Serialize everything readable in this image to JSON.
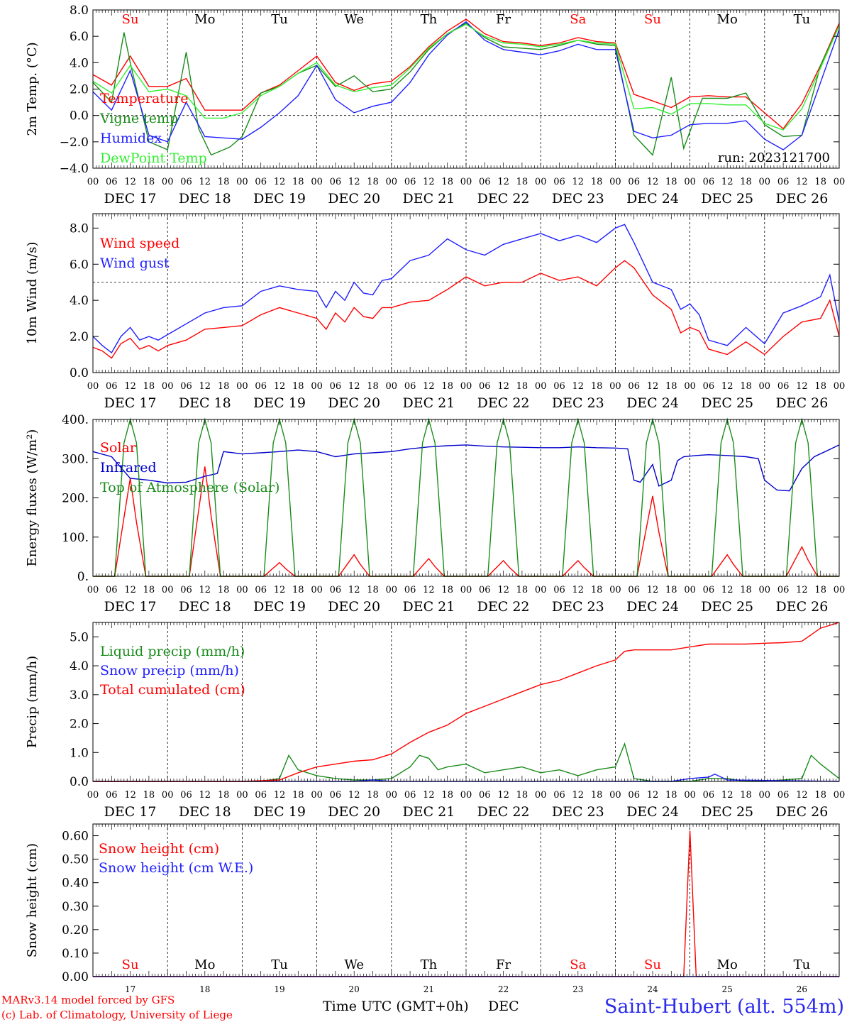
{
  "footer": {
    "model_line": "MARv3.14 model forced by GFS",
    "credit_line": "(c) Lab. of Climatology, University of Liege",
    "xlabel": "Time UTC (GMT+0h)",
    "month": "DEC",
    "station": "Saint-Hubert (alt. 554m)"
  },
  "run_label": "run: 2023121700",
  "colors": {
    "red": "#ff0000",
    "blue": "#1f1fff",
    "green": "#1a8c1a",
    "lightgreen": "#33ee33",
    "darkblue": "#0000cc"
  },
  "days": {
    "weekday": [
      "Su",
      "Mo",
      "Tu",
      "We",
      "Th",
      "Fr",
      "Sa",
      "Su",
      "Mo",
      "Tu"
    ],
    "weekday_color": [
      "red",
      "black",
      "black",
      "black",
      "black",
      "black",
      "red",
      "red",
      "black",
      "black"
    ],
    "labels": [
      "DEC 17",
      "DEC 18",
      "DEC 19",
      "DEC 20",
      "DEC 21",
      "DEC 22",
      "DEC 23",
      "DEC 24",
      "DEC 25",
      "DEC 26"
    ],
    "numbers": [
      "17",
      "18",
      "19",
      "20",
      "21",
      "22",
      "23",
      "24",
      "25",
      "26"
    ],
    "hours": [
      "00",
      "06",
      "12",
      "18"
    ]
  },
  "chart_data": [
    {
      "type": "line",
      "ylabel": "2m Temp. (°C)",
      "ylim": [
        -4,
        8
      ],
      "yticks": [
        "8.0",
        "6.0",
        "4.0",
        "2.0",
        "0.0",
        "−2.0",
        "−4.0"
      ],
      "dashed_y": 0,
      "series": [
        {
          "name": "Temperature",
          "color": "red",
          "x": [
            0,
            6,
            12,
            18,
            24,
            30,
            36,
            42,
            48,
            54,
            60,
            66,
            72,
            78,
            84,
            90,
            96,
            102,
            108,
            114,
            120,
            126,
            132,
            138,
            144,
            150,
            156,
            162,
            168,
            174,
            180,
            186,
            192,
            198,
            204,
            210,
            216,
            222,
            228,
            234,
            240
          ],
          "y": [
            3.1,
            2.3,
            4.5,
            2.2,
            2.2,
            2.8,
            0.4,
            0.4,
            0.4,
            1.7,
            2.3,
            3.4,
            4.5,
            2.5,
            1.9,
            2.4,
            2.6,
            3.7,
            5.2,
            6.4,
            7.3,
            6.2,
            5.6,
            5.5,
            5.3,
            5.5,
            5.9,
            5.6,
            5.5,
            1.6,
            1.1,
            0.6,
            1.4,
            1.5,
            1.4,
            1.4,
            0.2,
            -1.0,
            0.9,
            3.8,
            7.0
          ]
        },
        {
          "name": "Vigne temp",
          "color": "green",
          "x": [
            0,
            6,
            10,
            12,
            18,
            24,
            30,
            34,
            38,
            44,
            48,
            54,
            60,
            66,
            72,
            78,
            84,
            90,
            96,
            102,
            108,
            114,
            120,
            126,
            132,
            138,
            144,
            150,
            156,
            162,
            168,
            174,
            180,
            186,
            190,
            196,
            204,
            210,
            216,
            222,
            228,
            234,
            240
          ],
          "y": [
            2.5,
            1.0,
            6.3,
            4.0,
            -2.0,
            -2.6,
            4.8,
            -1.0,
            -3.0,
            -2.4,
            -1.6,
            1.7,
            2.2,
            3.2,
            3.8,
            2.2,
            3.0,
            1.8,
            2.0,
            3.3,
            5.0,
            6.2,
            7.0,
            5.9,
            5.2,
            5.1,
            5.0,
            5.3,
            5.7,
            5.4,
            5.3,
            -1.5,
            -3.0,
            2.9,
            -2.5,
            1.3,
            1.3,
            1.7,
            -0.7,
            -1.6,
            -1.5,
            3.8,
            6.8
          ]
        },
        {
          "name": "Humidex",
          "color": "blue",
          "x": [
            0,
            6,
            12,
            18,
            24,
            30,
            36,
            42,
            48,
            54,
            60,
            66,
            72,
            78,
            84,
            90,
            96,
            102,
            108,
            114,
            120,
            126,
            132,
            138,
            144,
            150,
            156,
            162,
            168,
            174,
            180,
            186,
            192,
            198,
            204,
            210,
            216,
            222,
            228,
            234,
            240
          ],
          "y": [
            1.8,
            0.4,
            3.4,
            -1.5,
            -2.0,
            1.0,
            -1.6,
            -1.7,
            -1.8,
            -0.9,
            0.2,
            1.5,
            3.8,
            1.2,
            0.2,
            0.7,
            1.0,
            2.5,
            4.6,
            6.1,
            7.1,
            5.7,
            5.0,
            4.8,
            4.6,
            4.9,
            5.4,
            5.0,
            5.0,
            -1.2,
            -1.7,
            -1.5,
            -0.7,
            -0.6,
            -0.6,
            -0.4,
            -1.8,
            -2.6,
            -1.5,
            2.5,
            6.5
          ]
        },
        {
          "name": "DewPoint Temp",
          "color": "lightgreen",
          "x": [
            0,
            6,
            12,
            18,
            24,
            30,
            36,
            42,
            48,
            54,
            60,
            66,
            72,
            78,
            84,
            90,
            96,
            102,
            108,
            114,
            120,
            126,
            132,
            138,
            144,
            150,
            156,
            162,
            168,
            174,
            180,
            186,
            192,
            198,
            204,
            210,
            216,
            222,
            228,
            234,
            240
          ],
          "y": [
            2.6,
            1.7,
            3.8,
            1.8,
            2.0,
            1.5,
            -0.2,
            -0.2,
            0.2,
            1.5,
            2.2,
            3.2,
            4.0,
            2.3,
            1.8,
            2.1,
            2.3,
            3.6,
            5.1,
            6.2,
            6.9,
            6.0,
            5.5,
            5.4,
            5.2,
            5.4,
            5.7,
            5.5,
            5.4,
            0.5,
            0.6,
            0.1,
            0.9,
            0.9,
            0.8,
            0.8,
            -0.6,
            -1.1,
            0.5,
            3.6,
            6.8
          ]
        }
      ]
    },
    {
      "type": "line",
      "ylabel": "10m Wind (m/s)",
      "ylim": [
        0,
        8.8
      ],
      "yticks": [
        "8.0",
        "6.0",
        "4.0",
        "2.0",
        "0.0"
      ],
      "dashed_y": 5,
      "series": [
        {
          "name": "Wind speed",
          "color": "red",
          "x": [
            0,
            3,
            6,
            9,
            12,
            15,
            18,
            21,
            24,
            30,
            36,
            42,
            48,
            54,
            60,
            66,
            72,
            75,
            78,
            81,
            84,
            87,
            90,
            93,
            96,
            102,
            108,
            114,
            120,
            126,
            132,
            138,
            144,
            150,
            156,
            162,
            168,
            171,
            174,
            180,
            186,
            189,
            192,
            195,
            198,
            204,
            210,
            216,
            222,
            228,
            234,
            237,
            240
          ],
          "y": [
            1.4,
            1.2,
            0.8,
            1.6,
            1.9,
            1.3,
            1.5,
            1.2,
            1.5,
            1.8,
            2.4,
            2.5,
            2.6,
            3.2,
            3.6,
            3.3,
            3.0,
            2.4,
            3.3,
            2.8,
            3.6,
            3.1,
            3.0,
            3.6,
            3.6,
            3.9,
            4.0,
            4.6,
            5.3,
            4.8,
            5.0,
            5.0,
            5.5,
            5.1,
            5.3,
            4.8,
            5.8,
            6.2,
            5.8,
            4.3,
            3.5,
            2.2,
            2.5,
            2.3,
            1.3,
            1.0,
            1.7,
            1.0,
            2.0,
            2.8,
            3.0,
            4.0,
            2.0
          ]
        },
        {
          "name": "Wind gust",
          "color": "blue",
          "x": [
            0,
            3,
            6,
            9,
            12,
            15,
            18,
            21,
            24,
            30,
            36,
            42,
            48,
            54,
            60,
            66,
            72,
            75,
            78,
            81,
            84,
            87,
            90,
            93,
            96,
            102,
            108,
            114,
            120,
            126,
            132,
            138,
            144,
            150,
            156,
            162,
            168,
            171,
            174,
            180,
            186,
            189,
            192,
            195,
            198,
            204,
            210,
            216,
            222,
            228,
            234,
            237,
            240
          ],
          "y": [
            2.0,
            1.5,
            1.1,
            2.0,
            2.5,
            1.8,
            2.0,
            1.8,
            2.1,
            2.7,
            3.3,
            3.6,
            3.7,
            4.5,
            4.8,
            4.6,
            4.5,
            3.6,
            4.5,
            4.0,
            5.0,
            4.4,
            4.3,
            5.1,
            5.2,
            6.2,
            6.5,
            7.4,
            6.8,
            6.5,
            7.1,
            7.4,
            7.7,
            7.3,
            7.6,
            7.2,
            8.0,
            8.2,
            7.2,
            5.0,
            4.6,
            3.5,
            3.8,
            3.2,
            1.8,
            1.5,
            2.5,
            1.6,
            3.3,
            3.7,
            4.2,
            5.4,
            2.8
          ]
        }
      ]
    },
    {
      "type": "line",
      "ylabel": "Energy fluxes (W/m²)",
      "ylim": [
        0,
        400
      ],
      "yticks": [
        "400.",
        "300.",
        "200.",
        "100.",
        "0."
      ],
      "series": [
        {
          "name": "Solar",
          "color": "red",
          "peaks": [
            250,
            280,
            35,
            55,
            45,
            40,
            40,
            205,
            55,
            75
          ]
        },
        {
          "name": "Infrared",
          "color": "darkblue",
          "x": [
            0,
            6,
            12,
            18,
            24,
            30,
            36,
            40,
            42,
            48,
            54,
            60,
            66,
            72,
            78,
            84,
            90,
            96,
            102,
            108,
            114,
            120,
            126,
            132,
            138,
            144,
            150,
            156,
            162,
            168,
            172,
            174,
            176,
            180,
            182,
            186,
            188,
            190,
            194,
            198,
            204,
            210,
            214,
            216,
            220,
            224,
            228,
            232,
            236,
            240
          ],
          "y": [
            318,
            305,
            250,
            245,
            238,
            240,
            255,
            262,
            318,
            312,
            315,
            318,
            322,
            318,
            305,
            312,
            315,
            318,
            325,
            330,
            333,
            335,
            332,
            330,
            329,
            328,
            328,
            330,
            328,
            327,
            325,
            245,
            240,
            285,
            230,
            245,
            295,
            305,
            308,
            310,
            308,
            305,
            300,
            245,
            220,
            218,
            275,
            305,
            320,
            335
          ]
        },
        {
          "name": "Top of Atmosphere (Solar)",
          "color": "green",
          "peak": 400
        }
      ]
    },
    {
      "type": "line",
      "ylabel": "Precip (mm/h)",
      "ylim": [
        0,
        5.5
      ],
      "yticks": [
        "5.0",
        "4.0",
        "3.0",
        "2.0",
        "1.0",
        "0.0"
      ],
      "series": [
        {
          "name": "Liquid precip (mm/h)",
          "color": "green",
          "x": [
            0,
            48,
            54,
            60,
            63,
            66,
            69,
            72,
            78,
            84,
            90,
            96,
            102,
            105,
            108,
            111,
            114,
            120,
            126,
            132,
            138,
            144,
            150,
            156,
            162,
            168,
            171,
            174,
            180,
            192,
            198,
            204,
            210,
            216,
            222,
            228,
            231,
            234,
            240
          ],
          "y": [
            0,
            0,
            0,
            0.1,
            0.9,
            0.4,
            0.3,
            0.2,
            0.1,
            0.05,
            0.05,
            0.1,
            0.5,
            0.9,
            0.8,
            0.4,
            0.5,
            0.6,
            0.3,
            0.4,
            0.5,
            0.3,
            0.4,
            0.2,
            0.4,
            0.5,
            1.3,
            0.1,
            0,
            0,
            0.1,
            0.1,
            0,
            0,
            0.05,
            0.1,
            0.9,
            0.6,
            0.1
          ]
        },
        {
          "name": "Snow precip (mm/h)",
          "color": "blue",
          "x": [
            0,
            84,
            90,
            96,
            186,
            192,
            198,
            200,
            204,
            240
          ],
          "y": [
            0,
            0,
            0.05,
            0,
            0,
            0.1,
            0.15,
            0.25,
            0.05,
            0
          ]
        },
        {
          "name": "Total cumulated (cm)",
          "color": "red",
          "x": [
            0,
            48,
            60,
            66,
            72,
            78,
            84,
            90,
            96,
            102,
            108,
            114,
            120,
            126,
            132,
            138,
            144,
            150,
            156,
            162,
            168,
            171,
            174,
            180,
            186,
            192,
            198,
            204,
            210,
            216,
            222,
            228,
            234,
            240
          ],
          "y": [
            0,
            0,
            0.05,
            0.3,
            0.5,
            0.6,
            0.7,
            0.75,
            0.95,
            1.35,
            1.7,
            1.95,
            2.35,
            2.6,
            2.85,
            3.1,
            3.35,
            3.5,
            3.75,
            4.0,
            4.2,
            4.5,
            4.55,
            4.55,
            4.55,
            4.65,
            4.75,
            4.75,
            4.75,
            4.78,
            4.8,
            4.85,
            5.3,
            5.5
          ]
        }
      ]
    },
    {
      "type": "line",
      "ylabel": "Snow height (cm)",
      "ylim": [
        0,
        0.65
      ],
      "yticks": [
        "0.60",
        "0.50",
        "0.40",
        "0.30",
        "0.20",
        "0.10",
        "0.00"
      ],
      "series": [
        {
          "name": "Snow height (cm)",
          "color": "red",
          "x": [
            0,
            190,
            192,
            194,
            240
          ],
          "y": [
            0,
            0,
            0.62,
            0,
            0
          ]
        },
        {
          "name": "Snow height (cm W.E.)",
          "color": "blue",
          "x": [
            0,
            240
          ],
          "y": [
            0,
            0
          ]
        }
      ]
    }
  ]
}
